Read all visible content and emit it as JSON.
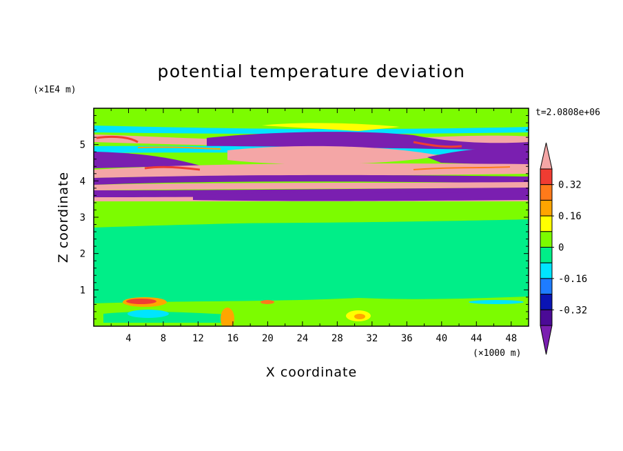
{
  "chart_data": {
    "type": "heatmap",
    "title": "potential temperature deviation",
    "xlabel": "X coordinate",
    "ylabel": "Z coordinate",
    "x_unit": "(×1000 m)",
    "y_unit": "(×1E4 m)",
    "time_label": "t=2.0808e+06",
    "xlim": [
      0,
      50
    ],
    "ylim": [
      0,
      6
    ],
    "x_ticks": [
      "4",
      "8",
      "12",
      "16",
      "20",
      "24",
      "28",
      "32",
      "36",
      "40",
      "44",
      "48"
    ],
    "y_ticks": [
      "1",
      "2",
      "3",
      "4",
      "5"
    ],
    "colorbar": {
      "tick_labels": [
        "0.32",
        "0.16",
        "0",
        "-0.16",
        "-0.32"
      ],
      "levels": [
        {
          "range": "above 0.4",
          "color": "#f4a6a6"
        },
        {
          "range": "0.32 to 0.4",
          "color": "#f03c32"
        },
        {
          "range": "0.24 to 0.32",
          "color": "#ff7a1a"
        },
        {
          "range": "0.16 to 0.24",
          "color": "#ffa500"
        },
        {
          "range": "0.08 to 0.16",
          "color": "#ffff00"
        },
        {
          "range": "0 to 0.08",
          "color": "#7cfc00"
        },
        {
          "range": "-0.08 to 0",
          "color": "#00ee88"
        },
        {
          "range": "-0.16 to -0.08",
          "color": "#00e5ff"
        },
        {
          "range": "-0.24 to -0.16",
          "color": "#1e7cff"
        },
        {
          "range": "-0.32 to -0.24",
          "color": "#0a14b4"
        },
        {
          "range": "-0.4 to -0.32",
          "color": "#4b0a96"
        },
        {
          "range": "below -0.4",
          "color": "#7a1fb0"
        }
      ]
    },
    "bands": [
      {
        "z_range": [
          0,
          3.4
        ],
        "level": "near 0, mixed green"
      },
      {
        "z_range": [
          3.4,
          5.6
        ],
        "level": "alternating strong positive (pink) and strong negative (purple) layers"
      },
      {
        "z_range": [
          5.6,
          6.0
        ],
        "level": "near 0, green"
      }
    ]
  }
}
